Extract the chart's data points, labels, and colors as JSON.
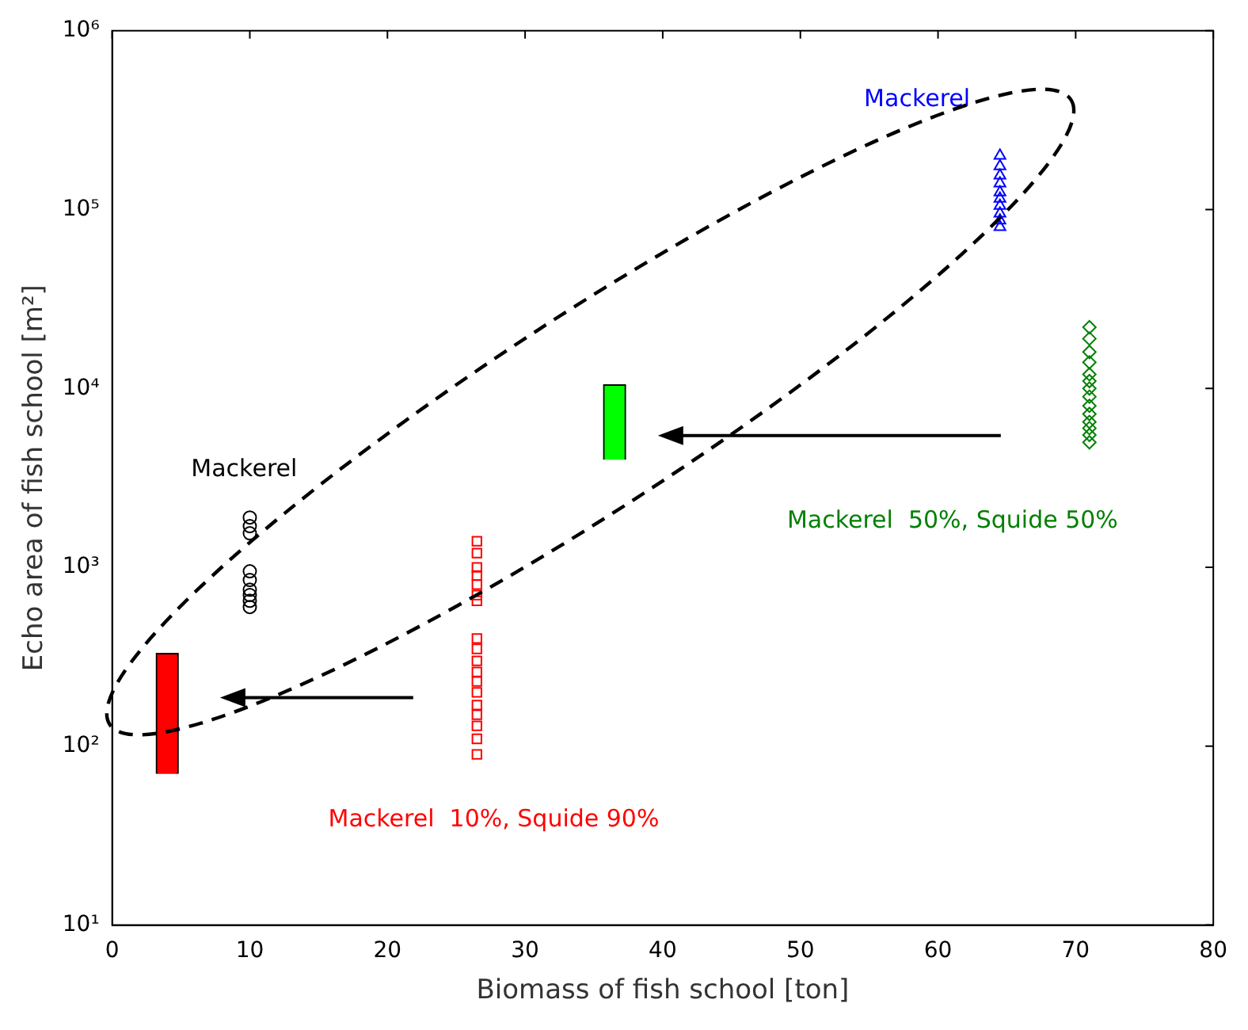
{
  "chart_data": {
    "type": "scatter",
    "xlabel": "Biomass of fish school [ton]",
    "ylabel": "Echo area of fish school [m²]",
    "xlim": [
      0,
      80
    ],
    "xticks": [
      0,
      10,
      20,
      30,
      40,
      50,
      60,
      70,
      80
    ],
    "ylim": [
      10,
      1000000
    ],
    "yticks": [
      {
        "value": 10,
        "label": "10¹"
      },
      {
        "value": 100,
        "label": "10²"
      },
      {
        "value": 1000,
        "label": "10³"
      },
      {
        "value": 10000,
        "label": "10⁴"
      },
      {
        "value": 100000,
        "label": "10⁵"
      },
      {
        "value": 1000000,
        "label": "10⁶"
      }
    ],
    "log": "y",
    "grid": false,
    "legend": false,
    "series": [
      {
        "marker": "circle",
        "color": "#000000",
        "x": [
          10,
          10,
          10,
          10,
          10,
          10,
          10,
          10,
          10
        ],
        "values": [
          1900,
          1700,
          1550,
          950,
          850,
          750,
          700,
          650,
          600
        ]
      },
      {
        "marker": "triangle",
        "color": "#0000ff",
        "x": [
          64.5,
          64.5,
          64.5,
          64.5,
          64.5,
          64.5,
          64.5,
          64.5,
          64.5,
          64.5
        ],
        "values": [
          200000,
          175000,
          155000,
          140000,
          125000,
          115000,
          105000,
          95000,
          87000,
          80000
        ]
      },
      {
        "marker": "diamond",
        "color": "#008000",
        "x": [
          71,
          71,
          71,
          71,
          71,
          71,
          71,
          71,
          71,
          71,
          71,
          71,
          71,
          71
        ],
        "values": [
          22000,
          19000,
          16000,
          14000,
          12000,
          11000,
          10000,
          9000,
          8000,
          7200,
          6500,
          6000,
          5500,
          5000
        ]
      },
      {
        "marker": "square",
        "color": "#ff0000",
        "x": [
          26.5,
          26.5,
          26.5,
          26.5,
          26.5,
          26.5,
          26.5,
          26.5,
          26.5,
          26.5,
          26.5,
          26.5,
          26.5,
          26.5,
          26.5,
          26.5,
          26.5,
          26.5
        ],
        "values": [
          1400,
          1200,
          1000,
          900,
          800,
          700,
          650,
          400,
          350,
          300,
          260,
          230,
          200,
          170,
          150,
          130,
          110,
          90
        ]
      },
      {
        "type": "bar",
        "color": "#ff0000",
        "x": [
          4
        ],
        "base": [
          70
        ],
        "values": [
          260
        ]
      },
      {
        "type": "bar",
        "color": "#00ff00",
        "x": [
          36.5
        ],
        "base": [
          4000
        ],
        "values": [
          6500
        ]
      }
    ],
    "annotations": [
      "Mackerel",
      "Mackerel",
      "Mackerel  50%, Squide 50%",
      "Mackerel  10%, Squide 90%"
    ]
  }
}
